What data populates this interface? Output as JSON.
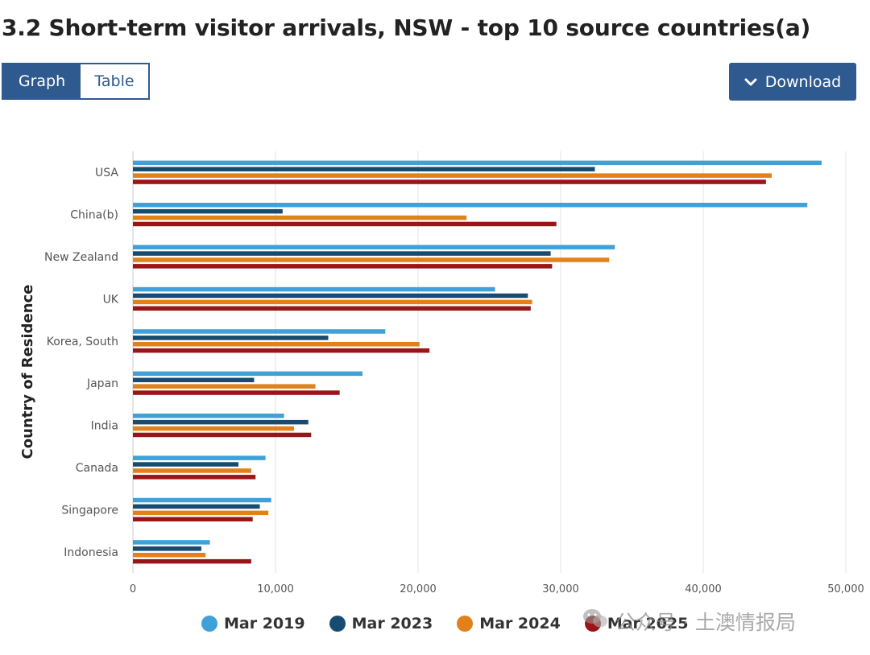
{
  "title": "3.2 Short-term visitor arrivals, NSW - top 10 source countries(a)",
  "tabs": {
    "graph": "Graph",
    "table": "Table",
    "active": "graph"
  },
  "download_label": "Download",
  "watermark": "公众号 · 土澳情报局",
  "colors": {
    "accent": "#2f5a8f"
  },
  "chart_data": {
    "type": "bar",
    "orientation": "horizontal",
    "title": "",
    "xlabel": "",
    "ylabel": "Country of Residence",
    "xlim": [
      0,
      50000
    ],
    "xticks": [
      0,
      10000,
      20000,
      30000,
      40000,
      50000
    ],
    "xtick_labels": [
      "0",
      "10,000",
      "20,000",
      "30,000",
      "40,000",
      "50,000"
    ],
    "grid": "vertical",
    "legend_position": "bottom",
    "categories": [
      "USA",
      "China(b)",
      "New Zealand",
      "UK",
      "Korea, South",
      "Japan",
      "India",
      "Canada",
      "Singapore",
      "Indonesia"
    ],
    "series": [
      {
        "name": "Mar 2019",
        "color": "#40a0d8",
        "values": [
          48300,
          47300,
          33800,
          25400,
          17700,
          16100,
          10600,
          9300,
          9700,
          5400
        ]
      },
      {
        "name": "Mar 2023",
        "color": "#174b72",
        "values": [
          32400,
          10500,
          29300,
          27700,
          13700,
          8500,
          12300,
          7400,
          8900,
          4800
        ]
      },
      {
        "name": "Mar 2024",
        "color": "#e08119",
        "values": [
          44800,
          23400,
          33400,
          28000,
          20100,
          12800,
          11300,
          8300,
          9500,
          5100
        ]
      },
      {
        "name": "Mar 2025",
        "color": "#9a1418",
        "values": [
          44400,
          29700,
          29400,
          27900,
          20800,
          14500,
          12500,
          8600,
          8400,
          8300
        ]
      }
    ]
  }
}
